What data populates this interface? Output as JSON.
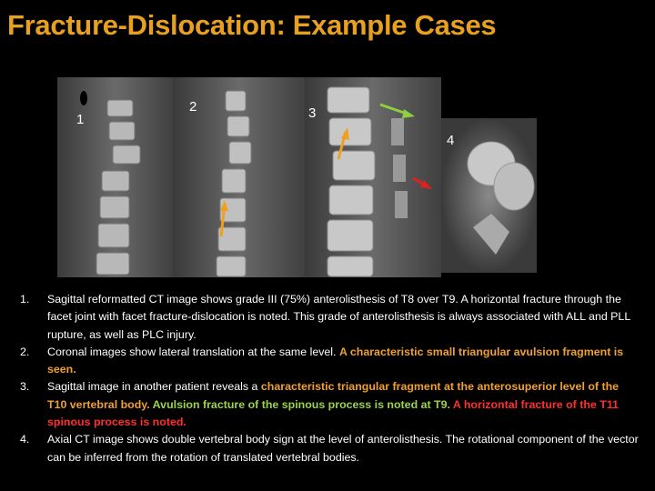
{
  "title": "Fracture-Dislocation: Example Cases",
  "panels": [
    {
      "label": "1"
    },
    {
      "label": "2"
    },
    {
      "label": "3"
    },
    {
      "label": "4"
    }
  ],
  "list": [
    {
      "marker": "1.",
      "segments": [
        "Sagittal reformatted CT image shows grade III (75%) anterolisthesis of T8 over T9. A horizontal fracture through the facet joint with facet fracture-dislocation is noted. This grade of anterolisthesis is always associated with ALL and PLL rupture, as well as PLC injury."
      ]
    },
    {
      "marker": "2.",
      "segments": [
        "Coronal images show lateral translation at the same level. ",
        "A characteristic small triangular avulsion fragment is seen."
      ]
    },
    {
      "marker": "3.",
      "segments": [
        "Sagittal image in another patient reveals a ",
        "characteristic triangular fragment at the anterosuperior level of the T10 vertebral body.",
        " Avulsion fracture of the spinous process is noted at T9.",
        " A horizontal fracture of the T11 spinous process is noted."
      ]
    },
    {
      "marker": "4.",
      "segments": [
        "Axial CT image shows double vertebral body sign at the level of anterolisthesis. The rotational component of the vector can be inferred from the rotation of translated vertebral bodies."
      ]
    }
  ]
}
